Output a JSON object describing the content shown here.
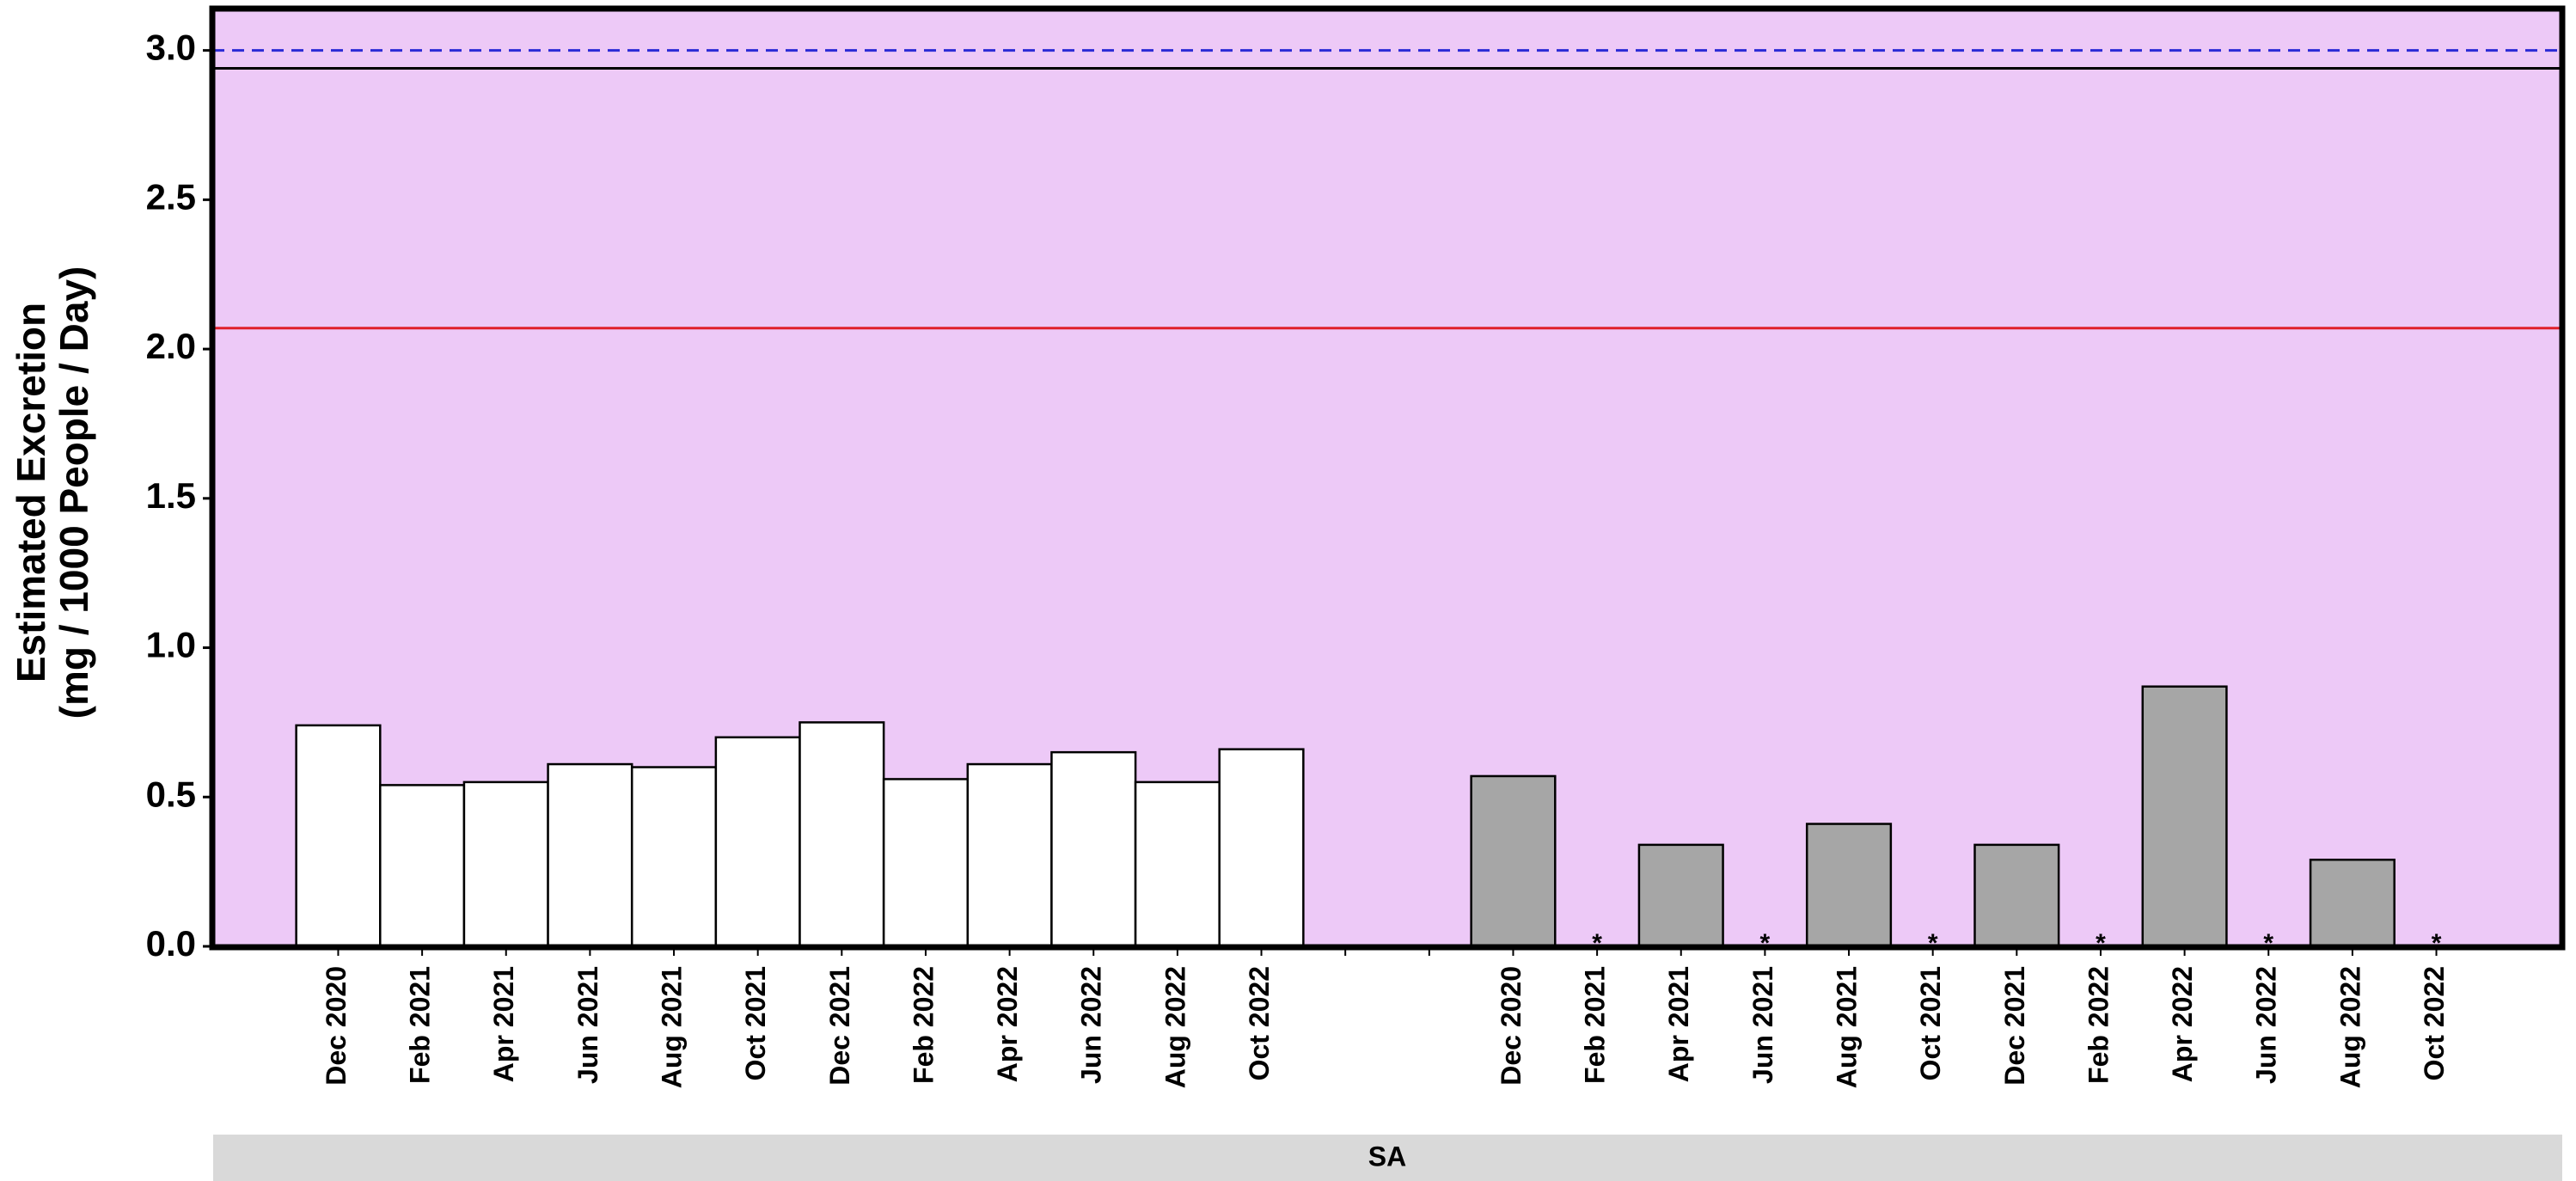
{
  "chart_data": {
    "type": "bar",
    "y_label": [
      "Estimated Excretion",
      "(mg / 1000 People / Day)"
    ],
    "facet_label": "SA",
    "background": "#edc9f7",
    "ylim": [
      0,
      3.14
    ],
    "yticks": [
      {
        "value": 0,
        "label": "0.0"
      },
      {
        "value": 0.5,
        "label": "0.5"
      },
      {
        "value": 1,
        "label": "1.0"
      },
      {
        "value": 1.5,
        "label": "1.5"
      },
      {
        "value": 2,
        "label": "2.0"
      },
      {
        "value": 2.5,
        "label": "2.5"
      },
      {
        "value": 3,
        "label": "3.0"
      }
    ],
    "reference_lines": [
      {
        "value": 3.0,
        "color": "#2b2bd6",
        "style": "dashed"
      },
      {
        "value": 2.94,
        "color": "#000000",
        "style": "solid"
      },
      {
        "value": 2.07,
        "color": "#e0202a",
        "style": "solid"
      }
    ],
    "missing_marker": "*",
    "groups": [
      {
        "color": "#ffffff",
        "categories": [
          "Dec 2020",
          "Feb 2021",
          "Apr 2021",
          "Jun 2021",
          "Aug 2021",
          "Oct 2021",
          "Dec 2021",
          "Feb 2022",
          "Apr 2022",
          "Jun 2022",
          "Aug 2022",
          "Oct 2022"
        ],
        "values": [
          0.74,
          0.54,
          0.55,
          0.61,
          0.6,
          0.7,
          0.75,
          0.56,
          0.61,
          0.65,
          0.55,
          0.66
        ]
      },
      {
        "color": "#a6a6a6",
        "categories": [
          "Dec 2020",
          "Feb 2021",
          "Apr 2021",
          "Jun 2021",
          "Aug 2021",
          "Oct 2021",
          "Dec 2021",
          "Feb 2022",
          "Apr 2022",
          "Jun 2022",
          "Aug 2022",
          "Oct 2022"
        ],
        "values": [
          0.57,
          null,
          0.34,
          null,
          0.41,
          null,
          0.34,
          null,
          0.87,
          null,
          0.29,
          null
        ]
      }
    ]
  }
}
